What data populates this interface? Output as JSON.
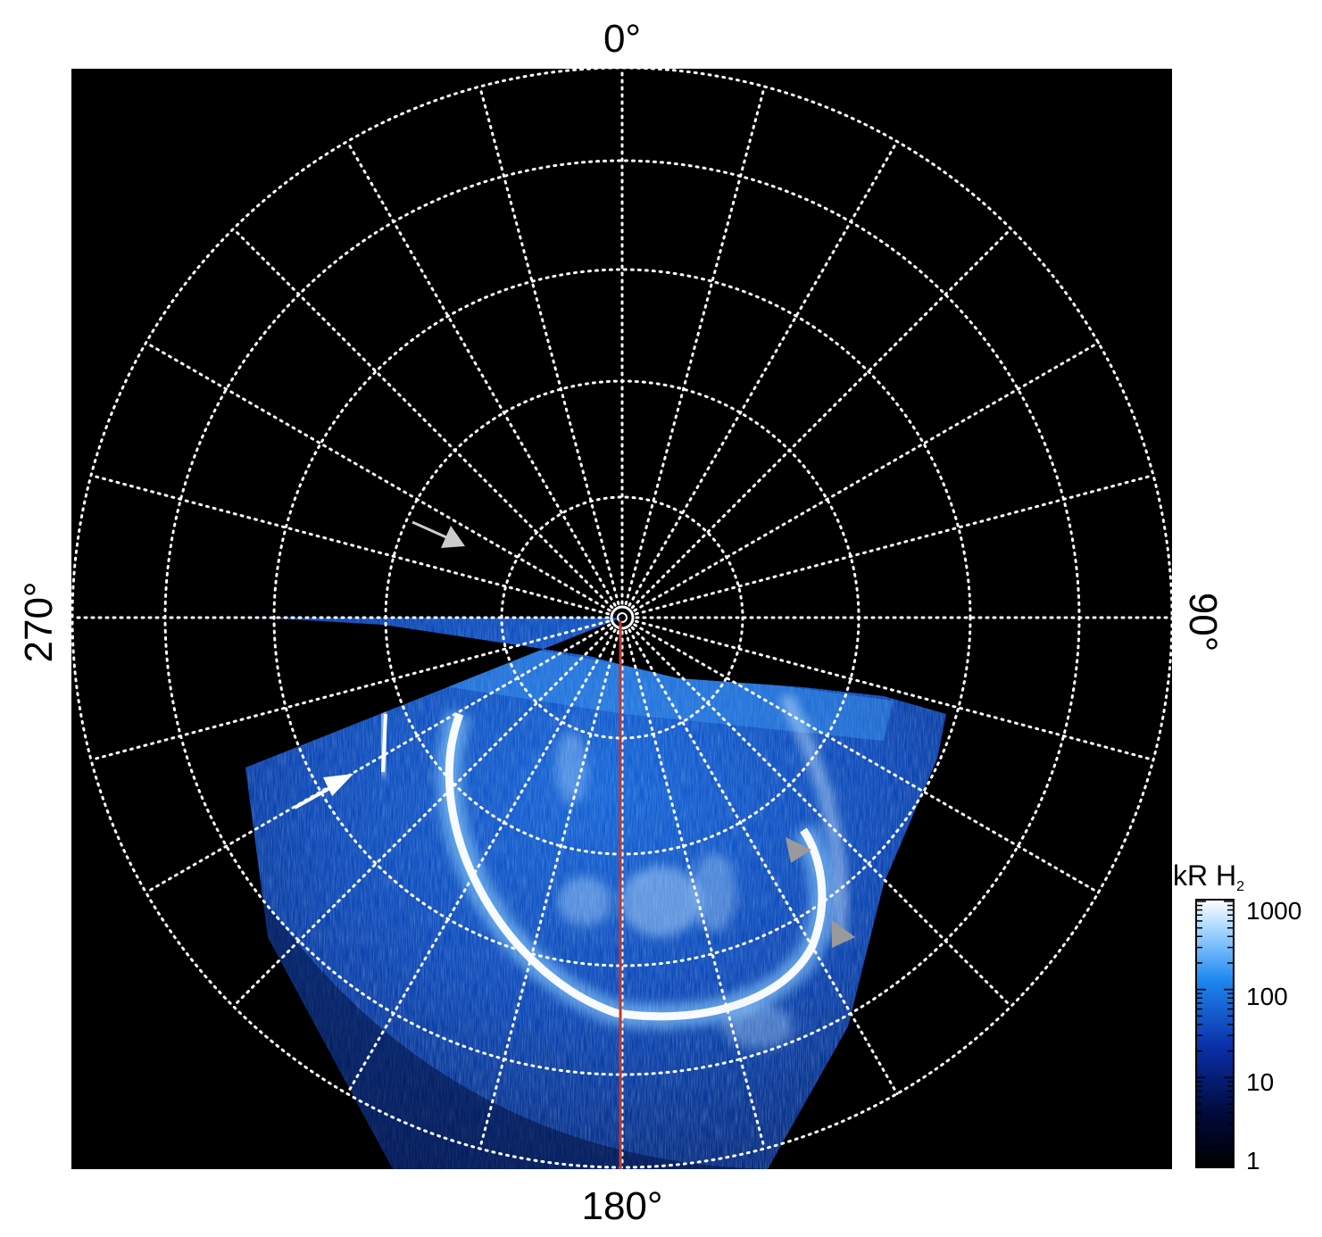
{
  "labels": {
    "top": "0°",
    "bottom": "180°",
    "left": "270°",
    "right": "90°"
  },
  "colorbar": {
    "title_main": "kR H",
    "title_sub": "2",
    "ticks": [
      "1000",
      "100",
      "10",
      "1"
    ]
  },
  "colors": {
    "background": "#000000",
    "grid": "#ffffff",
    "aurora_dark": "#00104a",
    "aurora_mid": "#1f6fe0",
    "aurora_bright": "#ffffff",
    "meridian_line": "#c0392b",
    "arrow_white": "#ffffff",
    "arrow_gray": "#9a9a9a"
  },
  "grid": {
    "latitude_rings": 6,
    "longitude_step_deg": 15
  }
}
